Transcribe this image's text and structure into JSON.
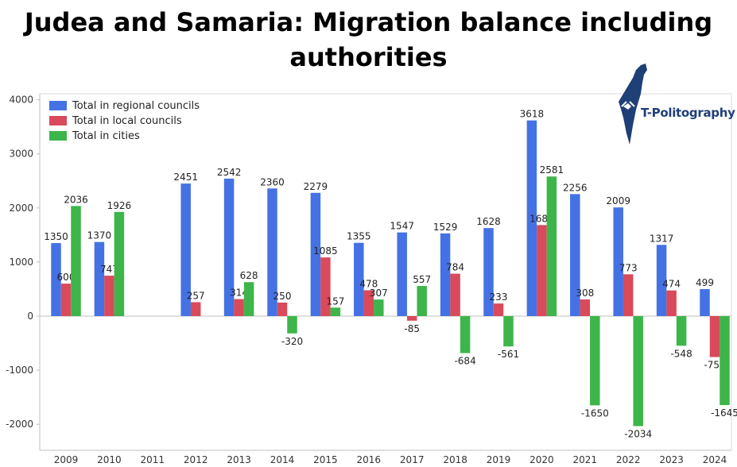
{
  "title_line1": "Judea and Samaria: Migration balance including",
  "title_line2": "authorities",
  "logo_text": "T-Politography",
  "chart_data": {
    "type": "bar",
    "title": "Judea and Samaria: Migration balance including authorities",
    "categories": [
      "2009",
      "2010",
      "2011",
      "2012",
      "2013",
      "2014",
      "2015",
      "2016",
      "2017",
      "2018",
      "2019",
      "2020",
      "2021",
      "2022",
      "2023",
      "2024"
    ],
    "series": [
      {
        "name": "Total in regional councils",
        "color": "#4472e4",
        "values": [
          1350,
          1370,
          null,
          2451,
          2542,
          2360,
          2279,
          1355,
          1547,
          1529,
          1628,
          3618,
          2256,
          2009,
          1317,
          499
        ]
      },
      {
        "name": "Total in local councils",
        "color": "#d94a5b",
        "values": [
          600,
          747,
          null,
          257,
          314,
          250,
          1085,
          478,
          -85,
          784,
          233,
          1683,
          308,
          773,
          474,
          -757
        ]
      },
      {
        "name": "Total in cities",
        "color": "#3db54a",
        "values": [
          2036,
          1926,
          null,
          null,
          628,
          -320,
          157,
          307,
          557,
          -684,
          -561,
          2581,
          -1650,
          -2034,
          -548,
          -1645
        ]
      }
    ],
    "yticks": [
      4000,
      3000,
      2000,
      1000,
      0,
      -1000,
      -2000
    ],
    "ylim": [
      -2200,
      4050
    ],
    "legend_position": "top-left",
    "grid": false
  }
}
